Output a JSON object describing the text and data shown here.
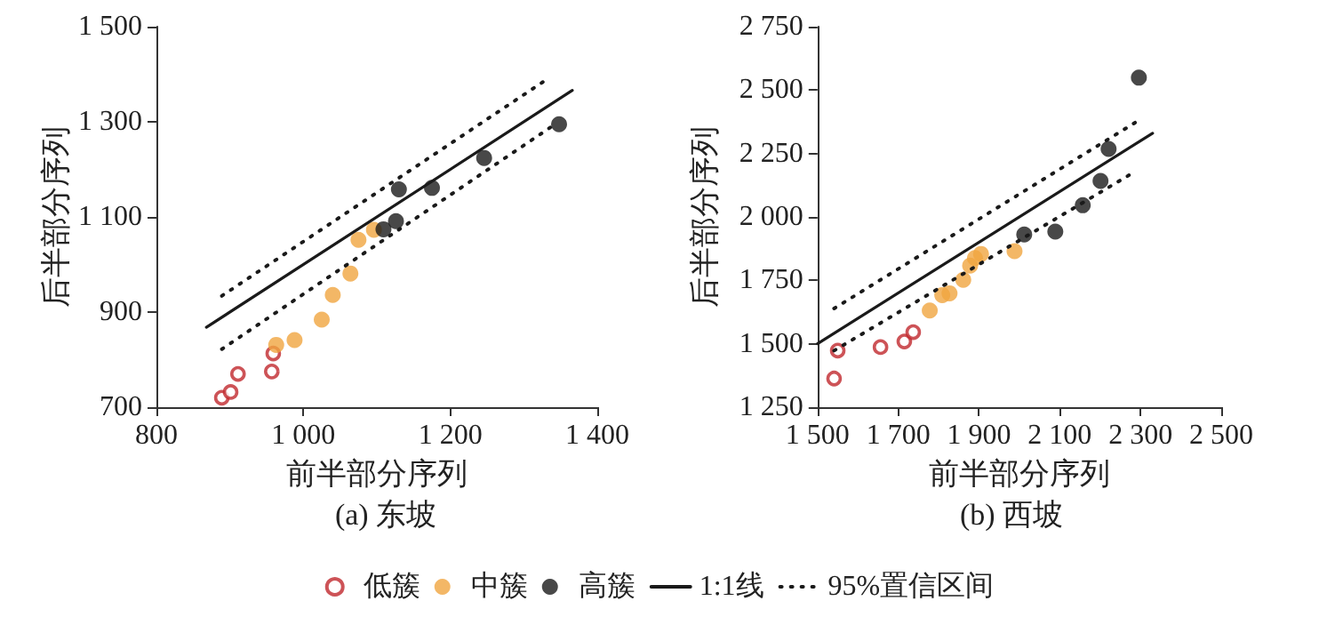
{
  "chart_data": [
    {
      "type": "scatter",
      "title": "(a) 东坡",
      "xlabel": "前半部分序列",
      "ylabel": "后半部分序列",
      "legend": "bottom",
      "grid": false,
      "xlim": [
        800,
        1400
      ],
      "xticks": [
        800,
        {
          "value": 1000,
          "label": "1 000"
        },
        {
          "value": 1200,
          "label": "1 200"
        },
        {
          "value": 1400,
          "label": "1 400"
        }
      ],
      "ylim": [
        700,
        1500
      ],
      "yticks": [
        700,
        900,
        {
          "value": 1100,
          "label": "1 100"
        },
        {
          "value": 1300,
          "label": "1 300"
        },
        {
          "value": 1500,
          "label": "1 500"
        }
      ],
      "series": [
        {
          "name": "低簇",
          "marker": "circle",
          "color": "#c0282d",
          "x": [
            889,
            901,
            911,
            957,
            959
          ],
          "values": [
            720,
            732,
            770,
            775,
            813
          ]
        },
        {
          "name": "中簇",
          "marker": "circle",
          "color": "#f0a540",
          "x": [
            963,
            988,
            1025,
            1040,
            1064,
            1075,
            1096
          ],
          "values": [
            831,
            841,
            884,
            936,
            981,
            1052,
            1073
          ]
        },
        {
          "name": "高簇",
          "marker": "circle",
          "color": "#1a1a1a",
          "x": [
            1109,
            1126,
            1130,
            1175,
            1246,
            1348
          ],
          "values": [
            1074,
            1091,
            1158,
            1161,
            1224,
            1295
          ]
        },
        {
          "name": "1:1线",
          "type": "line",
          "marker": "none",
          "line_style": "solid",
          "color": "#1a1a1a",
          "x": [
            868,
            1366
          ],
          "values": [
            868,
            1366
          ]
        },
        {
          "name": "95%置信区间",
          "type": "line",
          "marker": "none",
          "line_style": "dotted",
          "color": "#1a1a1a",
          "x": [
            889,
            1336
          ],
          "values": [
            934,
            1394
          ]
        },
        {
          "type": "line",
          "marker": "none",
          "line_style": "dotted",
          "color": "#1a1a1a",
          "x": [
            889,
            1336
          ],
          "values": [
            822,
            1288
          ]
        }
      ]
    },
    {
      "type": "scatter",
      "title": "(b) 西坡",
      "xlabel": "前半部分序列",
      "ylabel": "后半部分序列",
      "grid": false,
      "xlim": [
        1500,
        2500
      ],
      "xticks": [
        {
          "value": 1500,
          "label": "1 500"
        },
        {
          "value": 1700,
          "label": "1 700"
        },
        {
          "value": 1900,
          "label": "1 900"
        },
        {
          "value": 2100,
          "label": "2 100"
        },
        {
          "value": 2300,
          "label": "2 300"
        },
        {
          "value": 2500,
          "label": "2 500"
        }
      ],
      "ylim": [
        1250,
        2750
      ],
      "yticks": [
        {
          "value": 1250,
          "label": "1 250"
        },
        {
          "value": 1500,
          "label": "1 500"
        },
        {
          "value": 1750,
          "label": "1 750"
        },
        {
          "value": 2000,
          "label": "2 000"
        },
        {
          "value": 2250,
          "label": "2 250"
        },
        {
          "value": 2500,
          "label": "2 500"
        },
        {
          "value": 2750,
          "label": "2 750"
        }
      ],
      "series": [
        {
          "marker": "circle",
          "color": "#c0282d",
          "x": [
            1541,
            1550,
            1656,
            1715,
            1737
          ],
          "values": [
            1363,
            1473,
            1487,
            1509,
            1546
          ]
        },
        {
          "marker": "circle",
          "color": "#f0a540",
          "x": [
            1778,
            1809,
            1827,
            1861,
            1878,
            1890,
            1905,
            1988
          ],
          "values": [
            1631,
            1692,
            1699,
            1752,
            1808,
            1838,
            1854,
            1865
          ]
        },
        {
          "marker": "circle",
          "color": "#1a1a1a",
          "x": [
            2012,
            2089,
            2157,
            2201,
            2221,
            2296
          ],
          "values": [
            1931,
            1942,
            2046,
            2142,
            2268,
            2549
          ]
        },
        {
          "type": "line",
          "marker": "none",
          "line_style": "solid",
          "color": "#1a1a1a",
          "x": [
            1500,
            2330
          ],
          "values": [
            1500,
            2330
          ]
        },
        {
          "type": "line",
          "marker": "none",
          "line_style": "dotted",
          "color": "#1a1a1a",
          "x": [
            1541,
            2289
          ],
          "values": [
            1639,
            2374
          ]
        },
        {
          "type": "line",
          "marker": "none",
          "line_style": "dotted",
          "color": "#1a1a1a",
          "x": [
            1541,
            2289
          ],
          "values": [
            1473,
            2181
          ]
        }
      ]
    }
  ]
}
